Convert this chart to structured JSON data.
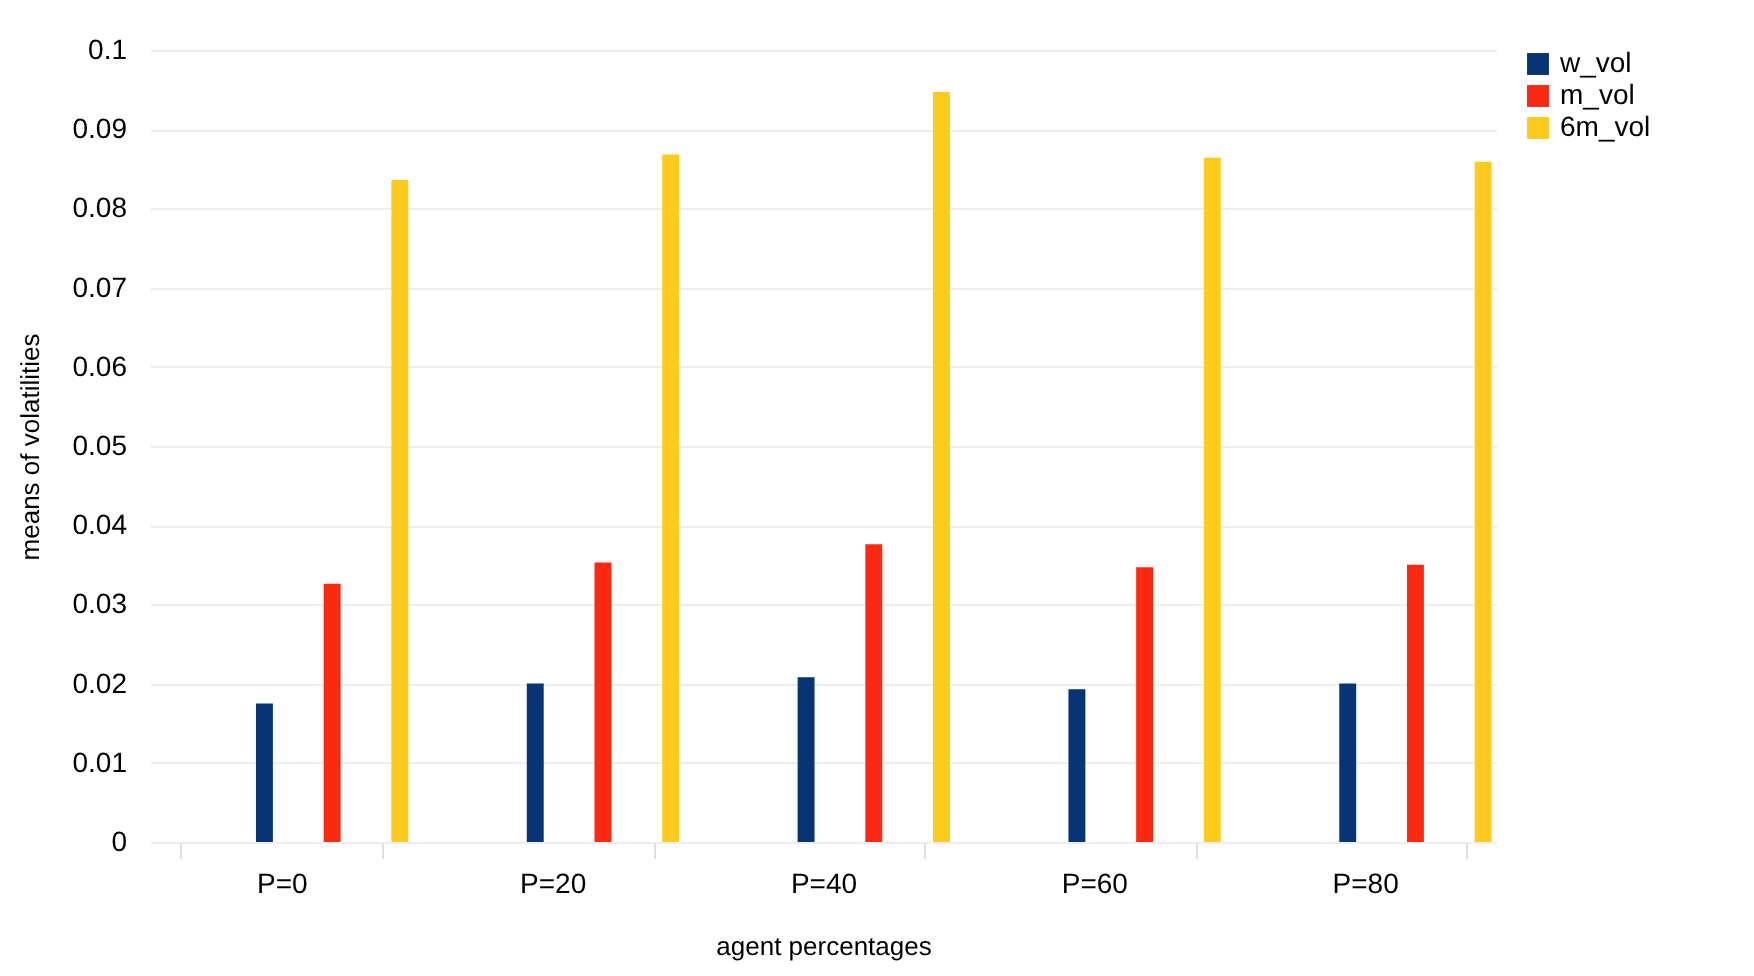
{
  "chart_data": {
    "type": "bar",
    "xlabel": "agent percentages",
    "ylabel": "means of volatilities",
    "categories": [
      "P=0",
      "P=20",
      "P=40",
      "P=60",
      "P=80"
    ],
    "series": [
      {
        "name": "w_vol",
        "color": "#073474",
        "values": [
          0.0175,
          0.02,
          0.0208,
          0.0193,
          0.02
        ]
      },
      {
        "name": "m_vol",
        "color": "#fa2a12",
        "values": [
          0.0326,
          0.0353,
          0.0376,
          0.0347,
          0.035
        ]
      },
      {
        "name": "6m_vol",
        "color": "#fdcb1e",
        "values": [
          0.0836,
          0.0868,
          0.0947,
          0.0864,
          0.0859
        ]
      }
    ],
    "ylim": [
      0,
      0.1
    ],
    "yticks": [
      0,
      0.01,
      0.02,
      0.03,
      0.04,
      0.05,
      0.06,
      0.07,
      0.08,
      0.09,
      0.1
    ],
    "grid": "y",
    "legend": "right"
  }
}
